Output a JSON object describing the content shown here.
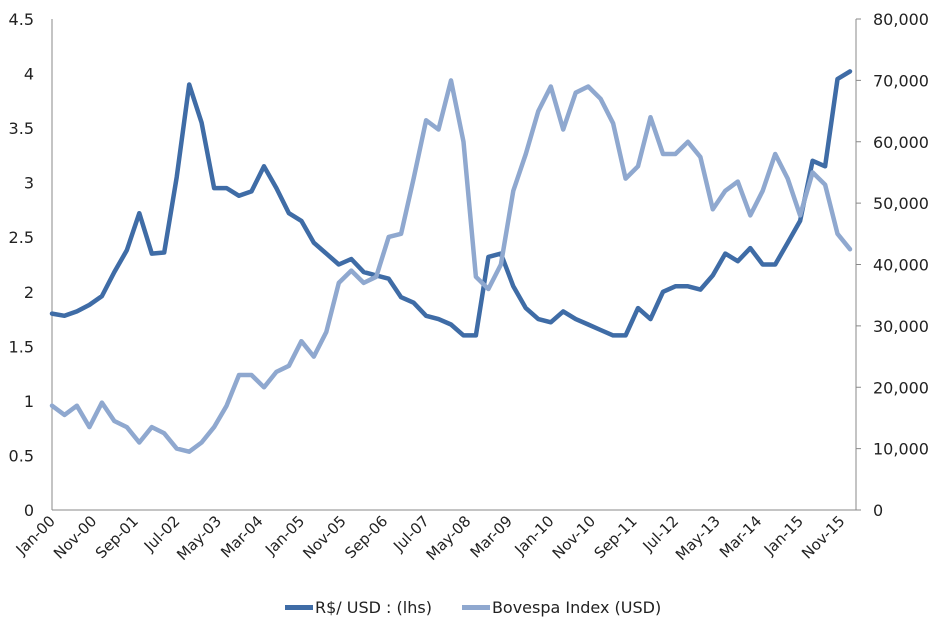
{
  "chart_data": {
    "type": "line",
    "title": "",
    "xlabel": "",
    "ylabel_left": "",
    "ylabel_right": "",
    "x_tick_labels": [
      "Jan-00",
      "Nov-00",
      "Sep-01",
      "Jul-02",
      "May-03",
      "Mar-04",
      "Jan-05",
      "Nov-05",
      "Sep-06",
      "Jul-07",
      "May-08",
      "Mar-09",
      "Jan-10",
      "Nov-10",
      "Sep-11",
      "Jul-12",
      "May-13",
      "Mar-14",
      "Jan-15",
      "Nov-15"
    ],
    "y_left_ticks": [
      "0",
      "0.5",
      "1",
      "1.5",
      "2",
      "2.5",
      "3",
      "3.5",
      "4",
      "4.5"
    ],
    "y_right_ticks": [
      "0",
      "10,000",
      "20,000",
      "30,000",
      "40,000",
      "50,000",
      "60,000",
      "70,000",
      "80,000"
    ],
    "ylim_left": [
      0,
      4.5
    ],
    "ylim_right": [
      0,
      80000
    ],
    "grid": false,
    "legend_position": "bottom",
    "x": [
      "Jan-00",
      "Apr-00",
      "Jul-00",
      "Oct-00",
      "Jan-01",
      "Apr-01",
      "Jul-01",
      "Oct-01",
      "Jan-02",
      "Apr-02",
      "Jul-02",
      "Oct-02",
      "Jan-03",
      "Apr-03",
      "Jul-03",
      "Oct-03",
      "Jan-04",
      "Apr-04",
      "Jul-04",
      "Oct-04",
      "Jan-05",
      "Apr-05",
      "Jul-05",
      "Oct-05",
      "Jan-06",
      "Apr-06",
      "Jul-06",
      "Oct-06",
      "Jan-07",
      "Apr-07",
      "Jul-07",
      "Oct-07",
      "Jan-08",
      "Apr-08",
      "Jul-08",
      "Oct-08",
      "Jan-09",
      "Apr-09",
      "Jul-09",
      "Oct-09",
      "Jan-10",
      "Apr-10",
      "Jul-10",
      "Oct-10",
      "Jan-11",
      "Apr-11",
      "Jul-11",
      "Oct-11",
      "Jan-12",
      "Apr-12",
      "Jul-12",
      "Oct-12",
      "Jan-13",
      "Apr-13",
      "Jul-13",
      "Oct-13",
      "Jan-14",
      "Apr-14",
      "Jul-14",
      "Oct-14",
      "Jan-15",
      "Apr-15",
      "Jul-15",
      "Oct-15",
      "Jan-16"
    ],
    "series": [
      {
        "name": "R$/ USD : (lhs)",
        "axis": "left",
        "color": "#3F6CA6",
        "values": [
          1.8,
          1.78,
          1.82,
          1.88,
          1.96,
          2.18,
          2.38,
          2.72,
          2.35,
          2.36,
          3.05,
          3.9,
          3.55,
          2.95,
          2.95,
          2.88,
          2.92,
          3.15,
          2.95,
          2.72,
          2.65,
          2.45,
          2.35,
          2.25,
          2.3,
          2.18,
          2.15,
          2.12,
          1.95,
          1.9,
          1.78,
          1.75,
          1.7,
          1.6,
          1.6,
          2.32,
          2.35,
          2.05,
          1.85,
          1.75,
          1.72,
          1.82,
          1.75,
          1.7,
          1.65,
          1.6,
          1.6,
          1.85,
          1.75,
          2.0,
          2.05,
          2.05,
          2.02,
          2.15,
          2.35,
          2.28,
          2.4,
          2.25,
          2.25,
          2.45,
          2.65,
          3.2,
          3.15,
          3.95,
          4.02
        ]
      },
      {
        "name": "Bovespa Index (USD)",
        "axis": "right",
        "color": "#8FA8CF",
        "values": [
          17000,
          15500,
          17000,
          13500,
          17500,
          14500,
          13500,
          11000,
          13500,
          12500,
          10000,
          9500,
          11000,
          13500,
          17000,
          22000,
          22000,
          20000,
          22500,
          23500,
          27500,
          25000,
          29000,
          37000,
          39000,
          37000,
          38000,
          44500,
          45000,
          54000,
          63500,
          62000,
          70000,
          60000,
          38000,
          36000,
          40000,
          52000,
          58000,
          65000,
          69000,
          62000,
          68000,
          69000,
          67000,
          63000,
          54000,
          56000,
          64000,
          58000,
          58000,
          60000,
          57500,
          49000,
          52000,
          53500,
          48000,
          52000,
          58000,
          54000,
          48000,
          55000,
          53000,
          45000,
          42500
        ]
      }
    ]
  },
  "legend": [
    {
      "label": "R$/ USD : (lhs)"
    },
    {
      "label": "Bovespa Index (USD)"
    }
  ]
}
